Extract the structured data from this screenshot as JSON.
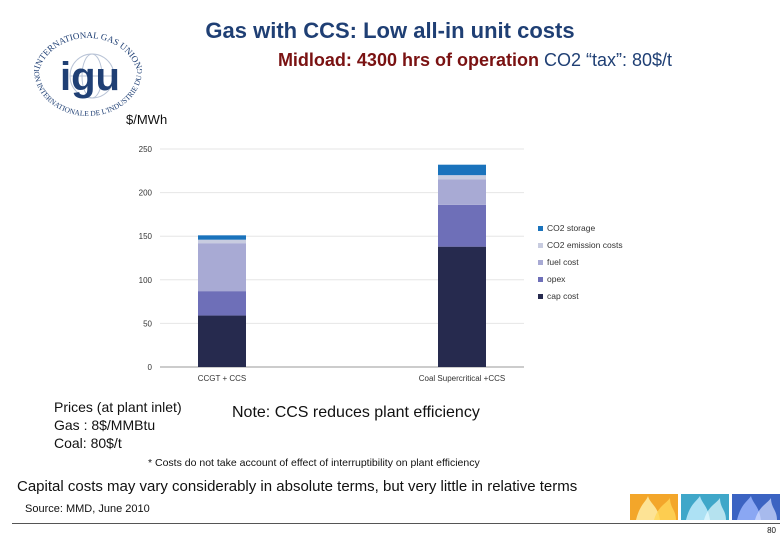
{
  "header": {
    "title": "Gas with CCS: Low all-in unit costs",
    "subtitle_part1": "Midload: 4300 hrs of operation",
    "subtitle_part2": "CO2 “tax”: 80$/t"
  },
  "logo": {
    "ring_text_top": "INTERNATIONAL GAS UNION",
    "ring_text_bottom": "UNION INTERNATIONALE DE L'INDUSTRIE DU GAZ",
    "center_text": "igu"
  },
  "chart_data": {
    "type": "bar",
    "stacked": true,
    "ylabel": "$/MWh",
    "ylim": [
      0,
      250
    ],
    "yticks": [
      0,
      50,
      100,
      150,
      200,
      250
    ],
    "categories": [
      "CCGT + CCS",
      "Coal Supercritical +CCS"
    ],
    "series": [
      {
        "name": "cap cost",
        "color": "#262a4e",
        "values": [
          59,
          138
        ]
      },
      {
        "name": "opex",
        "color": "#6e6fb8",
        "values": [
          28,
          48
        ]
      },
      {
        "name": "fuel cost",
        "color": "#a8aad4",
        "values": [
          55,
          29
        ]
      },
      {
        "name": "CO2 emission costs",
        "color": "#c8cce0",
        "values": [
          4,
          5
        ]
      },
      {
        "name": "CO2 storage",
        "color": "#1a73bc",
        "values": [
          5,
          12
        ]
      }
    ],
    "legend_order": [
      "CO2 storage",
      "CO2 emission costs",
      "fuel cost",
      "opex",
      "cap cost"
    ],
    "legend_position": "right"
  },
  "notes": {
    "prices_title": "Prices (at plant inlet)",
    "prices_gas": "Gas : 8$/MMBtu",
    "prices_coal": "Coal: 80$/t",
    "ccs_note": "Note: CCS reduces plant efficiency",
    "footnote": "* Costs do not take account of effect of interruptibility on plant efficiency",
    "capital_note": "Capital costs may vary considerably in absolute terms, but very little in relative terms",
    "source": "Source: MMD, June 2010"
  },
  "footer": {
    "page_number": "80"
  }
}
